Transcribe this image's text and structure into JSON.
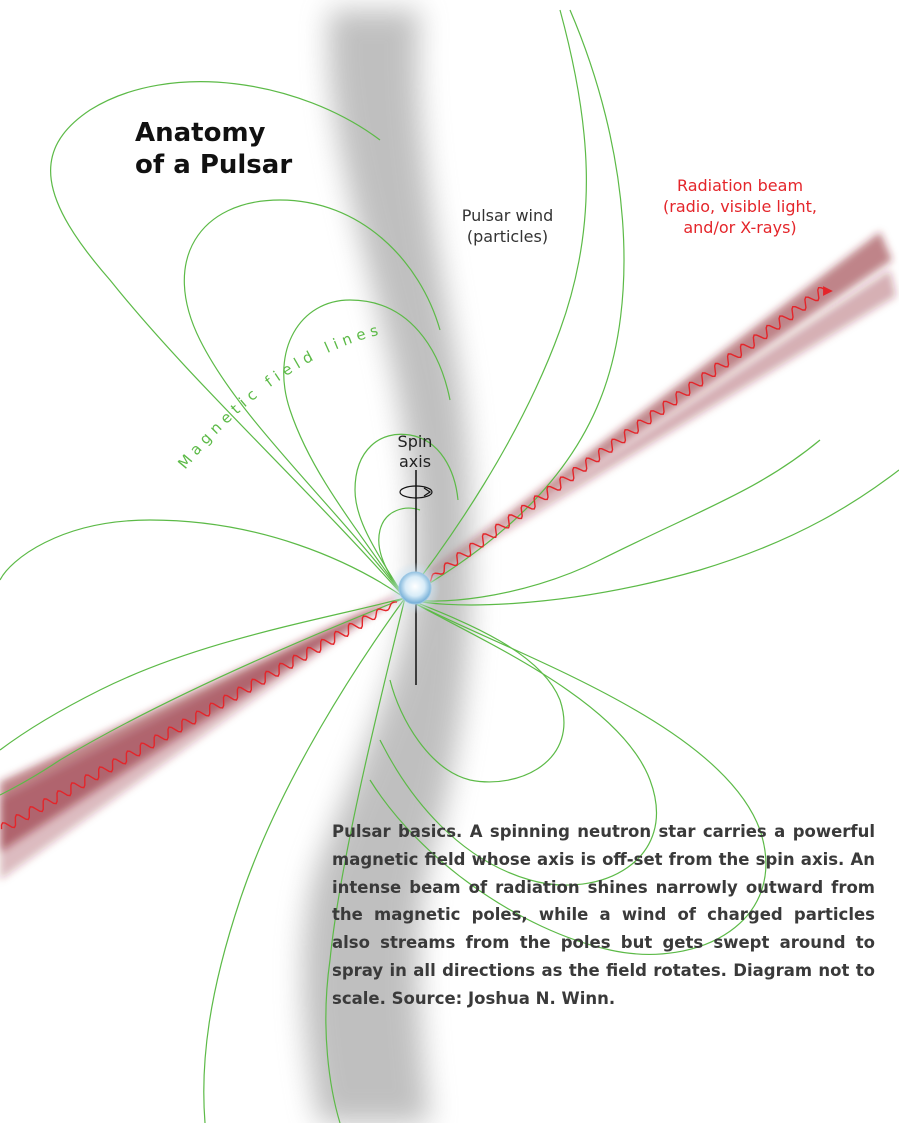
{
  "title_line1": "Anatomy",
  "title_line2": "of a Pulsar",
  "labels": {
    "beam_line1": "Radiation beam",
    "beam_line2": "(radio, visible light,",
    "beam_line3": "and/or X-rays)",
    "wind_line1": "Pulsar wind",
    "wind_line2": "(particles)",
    "field_lines": "Magnetic field lines",
    "spin_line1": "Spin",
    "spin_line2": "axis"
  },
  "caption": "Pulsar basics. A spinning neutron star carries a powerful magnetic field whose axis is off-set from the spin axis. An intense beam of radiation shines narrowly outward from the magnetic poles, while a wind of charged particles also streams from the poles but gets swept around to spray in all directions as the field rotates. Diagram not to scale. Source: Joshua N. Winn.",
  "colors": {
    "field": "#5cba47",
    "beam_wave": "#e4252a",
    "beam_glow": "#8a1f2b",
    "wind": "#9a9a9a",
    "star": "#7fb8dc"
  }
}
